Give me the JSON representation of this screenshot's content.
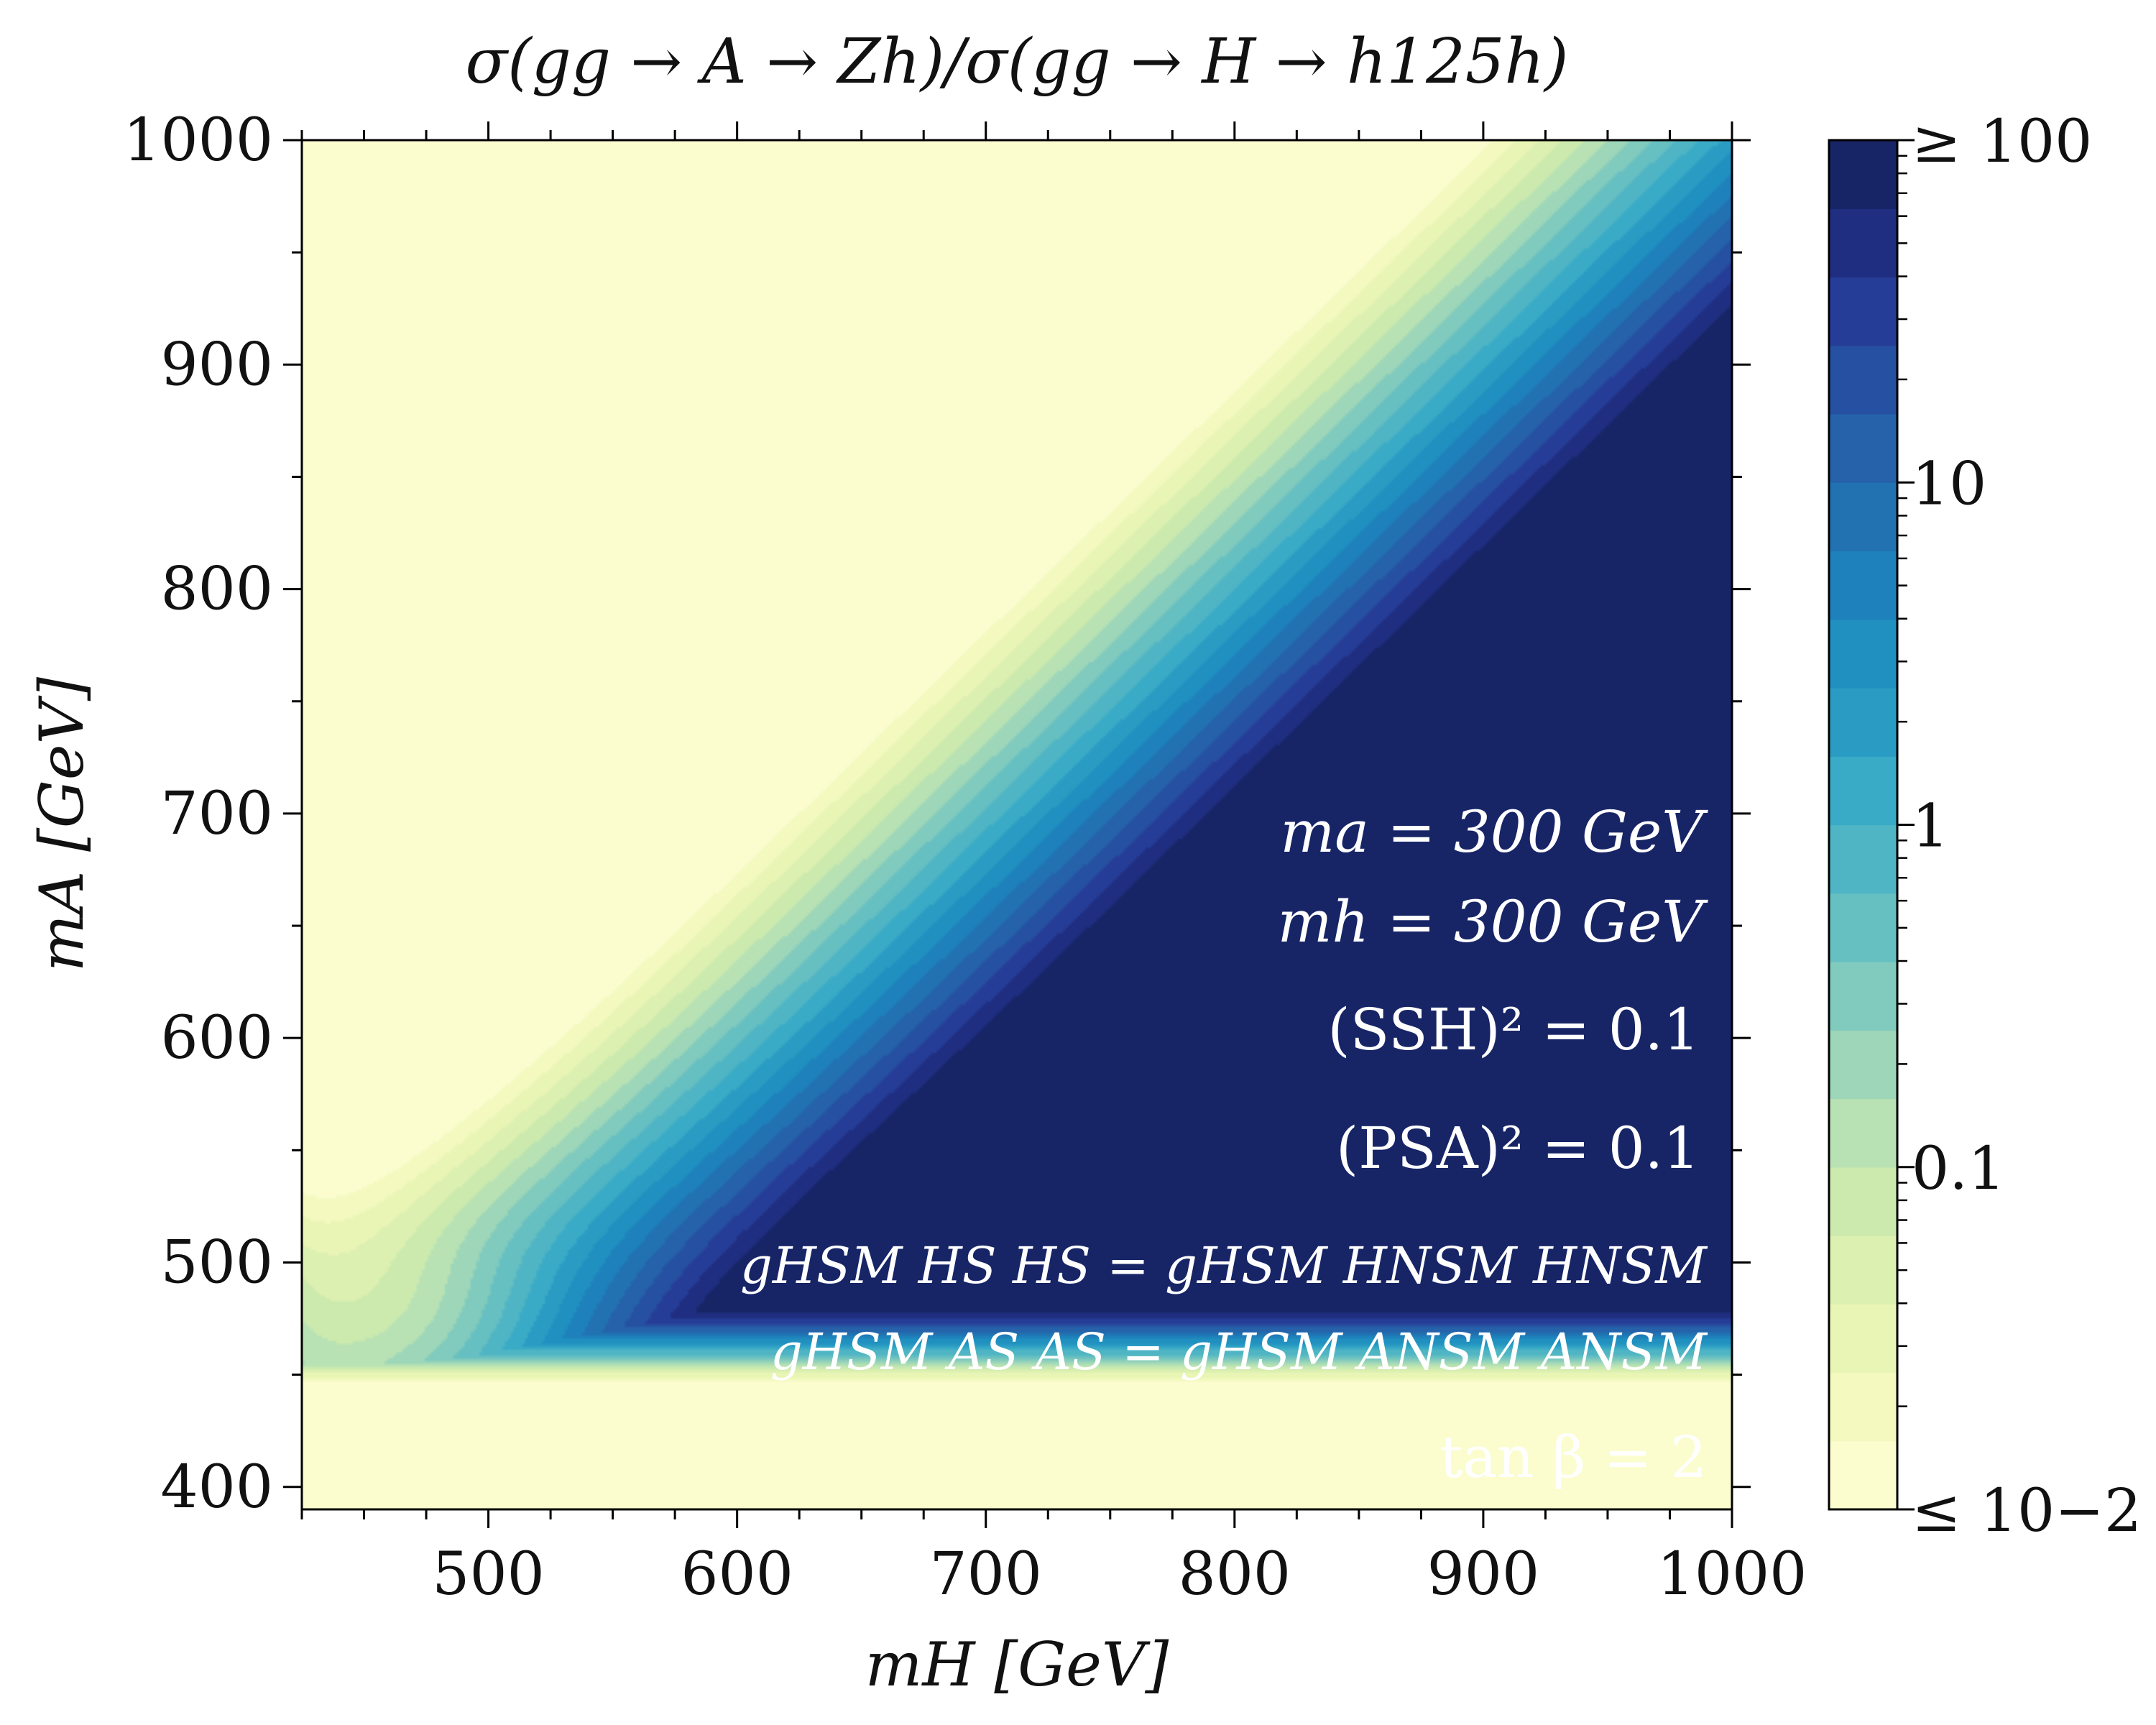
{
  "chart_data": {
    "type": "heatmap",
    "title": "σ(gg → A → Zh)/σ(gg → H → h125h)",
    "xlabel": "mH [GeV]",
    "ylabel": "mA [GeV]",
    "xlim": [
      425,
      1000
    ],
    "ylim": [
      390,
      1000
    ],
    "xticks": [
      500,
      600,
      700,
      800,
      900,
      1000
    ],
    "yticks": [
      400,
      500,
      600,
      700,
      800,
      900,
      1000
    ],
    "x_minor_step": 25,
    "y_minor_step": 50,
    "color_scale": "log",
    "zlim": [
      0.01,
      100
    ],
    "colorbar": {
      "ticks": [
        {
          "value": 100,
          "label": "≥ 100"
        },
        {
          "value": 10,
          "label": "10"
        },
        {
          "value": 1,
          "label": "1"
        },
        {
          "value": 0.1,
          "label": "0.1"
        },
        {
          "value": 0.01,
          "label": "≤ 10−2"
        }
      ],
      "levels": 20,
      "colors": [
        "#fbfdcf",
        "#f3f9bf",
        "#e9f5b5",
        "#dcf0b1",
        "#cceaae",
        "#b8e2b4",
        "#9dd6b8",
        "#80cabe",
        "#66bfc1",
        "#4fb5c4",
        "#3aabc6",
        "#2a9cc3",
        "#2090c0",
        "#1e81bb",
        "#2272b2",
        "#2562aa",
        "#2650a1",
        "#263d97",
        "#1f2e80",
        "#172566"
      ]
    },
    "annotations": [
      "ma = 300 GeV",
      "mh = 300 GeV",
      "(SSH)² = 0.1",
      "(PSA)² = 0.1",
      "gHSM HS HS = gHSM HNSM HNSM",
      "gHSM AS AS = gHSM ANSM ANSM",
      "tan β = 2"
    ],
    "grid": false,
    "legend": "none"
  }
}
